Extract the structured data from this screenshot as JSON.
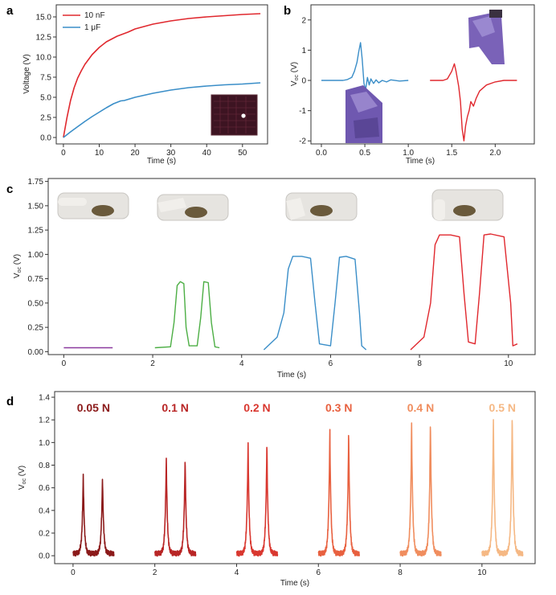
{
  "chart_data": [
    {
      "id": "a",
      "panel_label": "a",
      "type": "line",
      "xlabel": "Time (s)",
      "ylabel": "Voltage (V)",
      "xlim": [
        -2,
        57
      ],
      "ylim": [
        -0.8,
        16.5
      ],
      "xticks": [
        "0",
        "10",
        "20",
        "30",
        "40",
        "50"
      ],
      "xtick_values": [
        0,
        10,
        20,
        30,
        40,
        50
      ],
      "yticks": [
        "0.0",
        "2.5",
        "5.0",
        "7.5",
        "10.0",
        "12.5",
        "15.0"
      ],
      "ytick_values": [
        0,
        2.5,
        5,
        7.5,
        10,
        12.5,
        15
      ],
      "legend": "top-left",
      "series": [
        {
          "name": "10 nF",
          "color": "#e0282e",
          "x": [
            0,
            1,
            2,
            3,
            4,
            5,
            6,
            8,
            10,
            12,
            15,
            18,
            20,
            25,
            30,
            35,
            40,
            45,
            50,
            55
          ],
          "y": [
            0,
            2.5,
            4.6,
            6.2,
            7.4,
            8.3,
            9.1,
            10.3,
            11.2,
            11.9,
            12.6,
            13.1,
            13.5,
            14.1,
            14.5,
            14.8,
            15.0,
            15.15,
            15.3,
            15.4
          ]
        },
        {
          "name": "1 μF",
          "color": "#3a8ec8",
          "x": [
            0,
            2,
            4,
            6,
            8,
            10,
            12,
            14,
            16,
            17,
            20,
            25,
            30,
            35,
            40,
            45,
            50,
            55
          ],
          "y": [
            0,
            0.7,
            1.35,
            2.0,
            2.6,
            3.15,
            3.7,
            4.2,
            4.55,
            4.6,
            5.0,
            5.5,
            5.9,
            6.2,
            6.4,
            6.55,
            6.65,
            6.8
          ]
        }
      ]
    },
    {
      "id": "b",
      "panel_label": "b",
      "type": "line",
      "xlabel": "Time (s)",
      "ylabel": "V",
      "ylabel_sub": "oc",
      "ylabel_unit": " (V)",
      "xlim": [
        -0.12,
        2.45
      ],
      "ylim": [
        -2.1,
        2.5
      ],
      "xticks": [
        "0.0",
        "0.5",
        "1.0",
        "1.5",
        "2.0"
      ],
      "xtick_values": [
        0,
        0.5,
        1.0,
        1.5,
        2.0
      ],
      "yticks": [
        "-2",
        "-1",
        "0",
        "1",
        "2"
      ],
      "ytick_values": [
        -2,
        -1,
        0,
        1,
        2
      ],
      "series": [
        {
          "color": "#3a8ec8",
          "x": [
            0,
            0.25,
            0.3,
            0.35,
            0.38,
            0.41,
            0.43,
            0.45,
            0.47,
            0.49,
            0.51,
            0.53,
            0.55,
            0.57,
            0.6,
            0.63,
            0.66,
            0.7,
            0.75,
            0.8,
            0.9,
            1.0
          ],
          "y": [
            0,
            0,
            0.03,
            0.1,
            0.3,
            0.6,
            0.95,
            1.25,
            0.7,
            -0.1,
            -0.3,
            0.1,
            -0.15,
            0.05,
            -0.1,
            0.02,
            -0.08,
            0,
            -0.05,
            0.02,
            -0.02,
            0
          ]
        },
        {
          "color": "#e0282e",
          "x": [
            1.25,
            1.4,
            1.45,
            1.5,
            1.53,
            1.55,
            1.58,
            1.6,
            1.62,
            1.64,
            1.66,
            1.68,
            1.7,
            1.72,
            1.75,
            1.78,
            1.82,
            1.9,
            2.0,
            2.1,
            2.25
          ],
          "y": [
            0,
            0,
            0.05,
            0.3,
            0.55,
            0.3,
            -0.2,
            -0.7,
            -1.6,
            -2.0,
            -1.5,
            -1.2,
            -1.0,
            -0.7,
            -0.85,
            -0.6,
            -0.35,
            -0.15,
            -0.05,
            0,
            0
          ]
        }
      ]
    },
    {
      "id": "c",
      "panel_label": "c",
      "type": "line",
      "xlabel": "Time (s)",
      "ylabel": "V",
      "ylabel_sub": "oc",
      "ylabel_unit": " (V)",
      "xlim": [
        -0.35,
        10.6
      ],
      "ylim": [
        -0.03,
        1.78
      ],
      "xticks": [
        "0",
        "2",
        "4",
        "6",
        "8",
        "10"
      ],
      "xtick_values": [
        0,
        2,
        4,
        6,
        8,
        10
      ],
      "yticks": [
        "0.00",
        "0.25",
        "0.50",
        "0.75",
        "1.00",
        "1.25",
        "1.50",
        "1.75"
      ],
      "ytick_values": [
        0,
        0.25,
        0.5,
        0.75,
        1.0,
        1.25,
        1.5,
        1.75
      ],
      "series": [
        {
          "color": "#8b3a9e",
          "x": [
            0,
            1.1
          ],
          "y": [
            0.04,
            0.04
          ]
        },
        {
          "color": "#4cae44",
          "x": [
            2.05,
            2.4,
            2.48,
            2.55,
            2.62,
            2.7,
            2.75,
            2.82,
            3.0,
            3.08,
            3.15,
            3.25,
            3.32,
            3.4,
            3.5
          ],
          "y": [
            0.04,
            0.05,
            0.3,
            0.68,
            0.72,
            0.7,
            0.25,
            0.06,
            0.06,
            0.35,
            0.72,
            0.71,
            0.3,
            0.05,
            0.04
          ]
        },
        {
          "color": "#3a8ec8",
          "x": [
            4.5,
            4.8,
            4.95,
            5.05,
            5.15,
            5.35,
            5.55,
            5.65,
            5.75,
            6.0,
            6.1,
            6.2,
            6.35,
            6.55,
            6.65,
            6.7,
            6.8
          ],
          "y": [
            0.02,
            0.15,
            0.4,
            0.85,
            0.98,
            0.98,
            0.96,
            0.5,
            0.08,
            0.06,
            0.5,
            0.97,
            0.98,
            0.95,
            0.4,
            0.06,
            0.02
          ]
        },
        {
          "color": "#e0282e",
          "x": [
            7.8,
            8.1,
            8.25,
            8.35,
            8.45,
            8.7,
            8.9,
            9.0,
            9.1,
            9.25,
            9.35,
            9.45,
            9.6,
            9.9,
            10.05,
            10.1,
            10.2
          ],
          "y": [
            0.02,
            0.15,
            0.5,
            1.1,
            1.2,
            1.2,
            1.18,
            0.6,
            0.1,
            0.08,
            0.6,
            1.2,
            1.21,
            1.18,
            0.5,
            0.06,
            0.08
          ]
        }
      ]
    },
    {
      "id": "d",
      "panel_label": "d",
      "type": "line",
      "xlabel": "Time (s)",
      "ylabel": "V",
      "ylabel_sub": "oc",
      "ylabel_unit": " (V)",
      "xlim": [
        -0.45,
        11.3
      ],
      "ylim": [
        -0.07,
        1.45
      ],
      "xticks": [
        "0",
        "2",
        "4",
        "6",
        "8",
        "10"
      ],
      "xtick_values": [
        0,
        2,
        4,
        6,
        8,
        10
      ],
      "yticks": [
        "0.0",
        "0.2",
        "0.4",
        "0.6",
        "0.8",
        "1.0",
        "1.2",
        "1.4"
      ],
      "ytick_values": [
        0,
        0.2,
        0.4,
        0.6,
        0.8,
        1.0,
        1.2,
        1.4
      ],
      "groups": [
        {
          "label": "0.05 N",
          "color": "#8b1a1a",
          "start": 0.0,
          "peaks": [
            {
              "t": 0.25,
              "v": 0.69
            },
            {
              "t": 0.72,
              "v": 0.68
            }
          ]
        },
        {
          "label": "0.1 N",
          "color": "#b82525",
          "start": 2.0,
          "peaks": [
            {
              "t": 2.28,
              "v": 0.85
            },
            {
              "t": 2.74,
              "v": 0.85
            }
          ]
        },
        {
          "label": "0.2 N",
          "color": "#d9372f",
          "start": 4.0,
          "peaks": [
            {
              "t": 4.28,
              "v": 0.99
            },
            {
              "t": 4.74,
              "v": 0.99
            }
          ]
        },
        {
          "label": "0.3 N",
          "color": "#e8603f",
          "start": 6.0,
          "peaks": [
            {
              "t": 6.28,
              "v": 1.11
            },
            {
              "t": 6.74,
              "v": 1.1
            }
          ]
        },
        {
          "label": "0.4 N",
          "color": "#f08d5e",
          "start": 8.0,
          "peaks": [
            {
              "t": 8.28,
              "v": 1.17
            },
            {
              "t": 8.74,
              "v": 1.18
            }
          ]
        },
        {
          "label": "0.5 N",
          "color": "#f5b884",
          "start": 10.0,
          "peaks": [
            {
              "t": 10.28,
              "v": 1.2
            },
            {
              "t": 10.74,
              "v": 1.24
            }
          ]
        }
      ]
    }
  ],
  "colors": {
    "axis": "#333333",
    "red": "#e0282e",
    "blue": "#3a8ec8",
    "green": "#4cae44",
    "purple": "#8b3a9e"
  }
}
